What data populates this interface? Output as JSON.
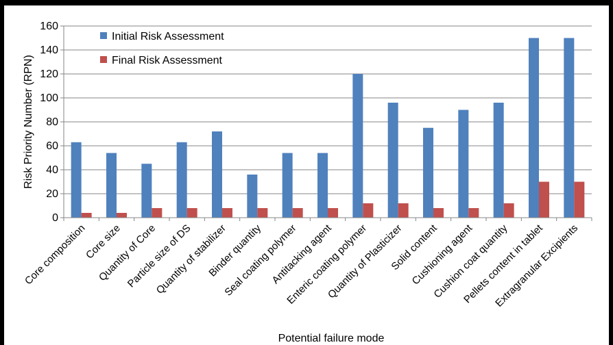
{
  "chart_data": {
    "type": "bar",
    "title": "",
    "xlabel": "Potential failure mode",
    "ylabel": "Risk Priority Number (RPN)",
    "ylim": [
      0,
      160
    ],
    "yticks": [
      0,
      20,
      40,
      60,
      80,
      100,
      120,
      140,
      160
    ],
    "grid": "horizontal",
    "legend_position": "top-left",
    "categories": [
      "Core composition",
      "Core size",
      "Quantity of Core",
      "Particle size of DS",
      "Quantity of stabilizer",
      "Binder quantity",
      "Seal coating polymer",
      "Antitacking agent",
      "Enteric coating polymer",
      "Quantity of Plasticizer",
      "Solid content",
      "Cushioning agent",
      "Cushion coat quantity",
      "Pellets content in tablet",
      "Extragranular Excipients"
    ],
    "series": [
      {
        "name": "Initial Risk Assessment",
        "color": "#4F81BD",
        "values": [
          63,
          54,
          45,
          63,
          72,
          36,
          54,
          54,
          120,
          96,
          75,
          90,
          96,
          150,
          150
        ]
      },
      {
        "name": "Final Risk Assessment",
        "color": "#C0504D",
        "values": [
          4,
          4,
          8,
          8,
          8,
          8,
          8,
          8,
          12,
          12,
          8,
          8,
          12,
          30,
          30
        ]
      }
    ]
  }
}
